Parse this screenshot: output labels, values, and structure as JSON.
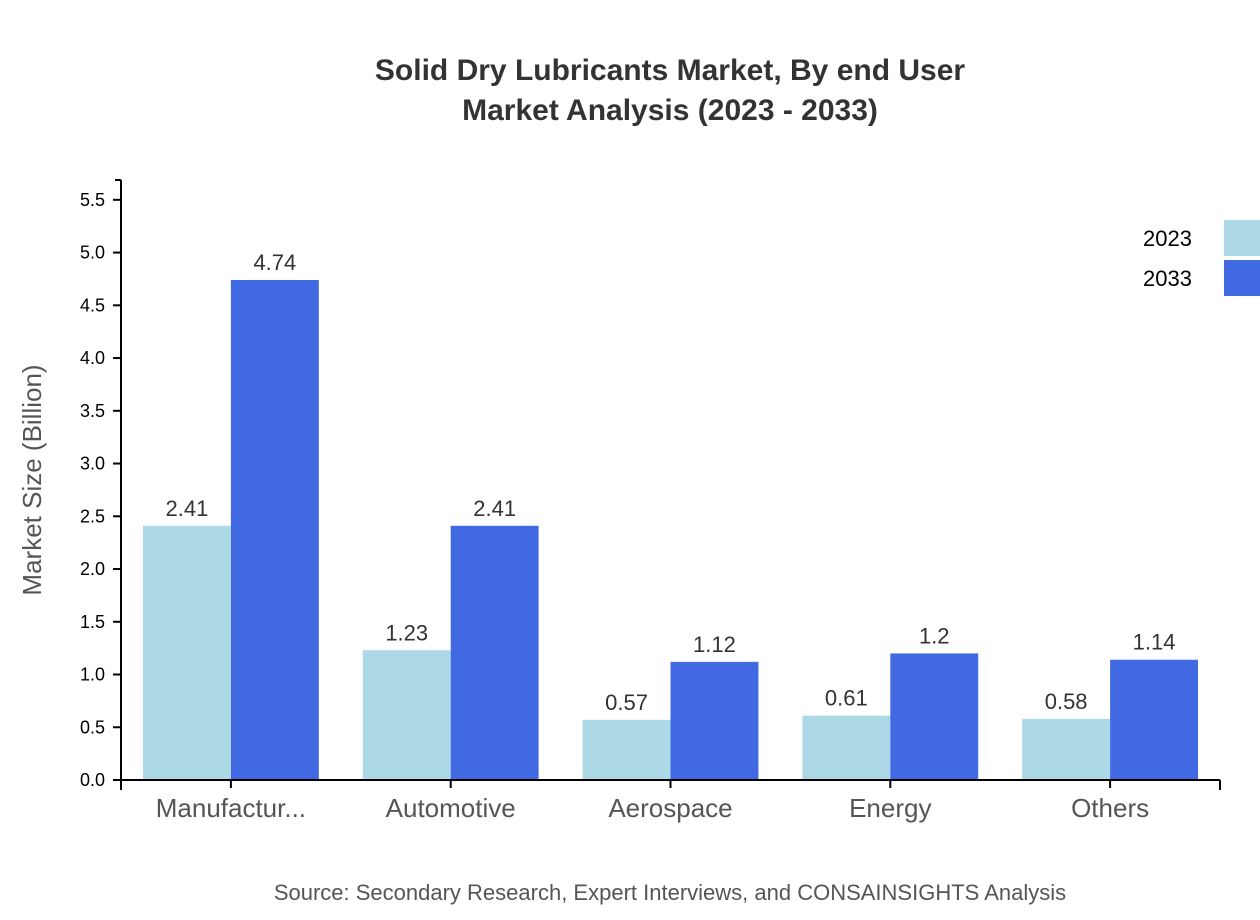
{
  "chart_data": {
    "type": "bar",
    "title": [
      "Solid Dry Lubricants Market, By end User",
      "Market Analysis (2023 - 2033)"
    ],
    "ylabel": "Market Size (Billion)",
    "xlabel": "",
    "categories": [
      "Manufactur...",
      "Automotive",
      "Aerospace",
      "Energy",
      "Others"
    ],
    "series": [
      {
        "name": "2023",
        "color": "#add8e6",
        "values": [
          2.41,
          1.23,
          0.57,
          0.61,
          0.58
        ]
      },
      {
        "name": "2033",
        "color": "#4169e1",
        "values": [
          4.74,
          2.41,
          1.12,
          1.2,
          1.14
        ]
      }
    ],
    "ylim": [
      0,
      5.688
    ],
    "yticks": [
      0.0,
      0.5,
      1.0,
      1.5,
      2.0,
      2.5,
      3.0,
      3.5,
      4.0,
      4.5,
      5.0,
      5.5
    ],
    "grid": false,
    "legend_placement": "top-right",
    "source": "Source: Secondary Research, Expert Interviews, and CONSAINSIGHTS Analysis"
  }
}
